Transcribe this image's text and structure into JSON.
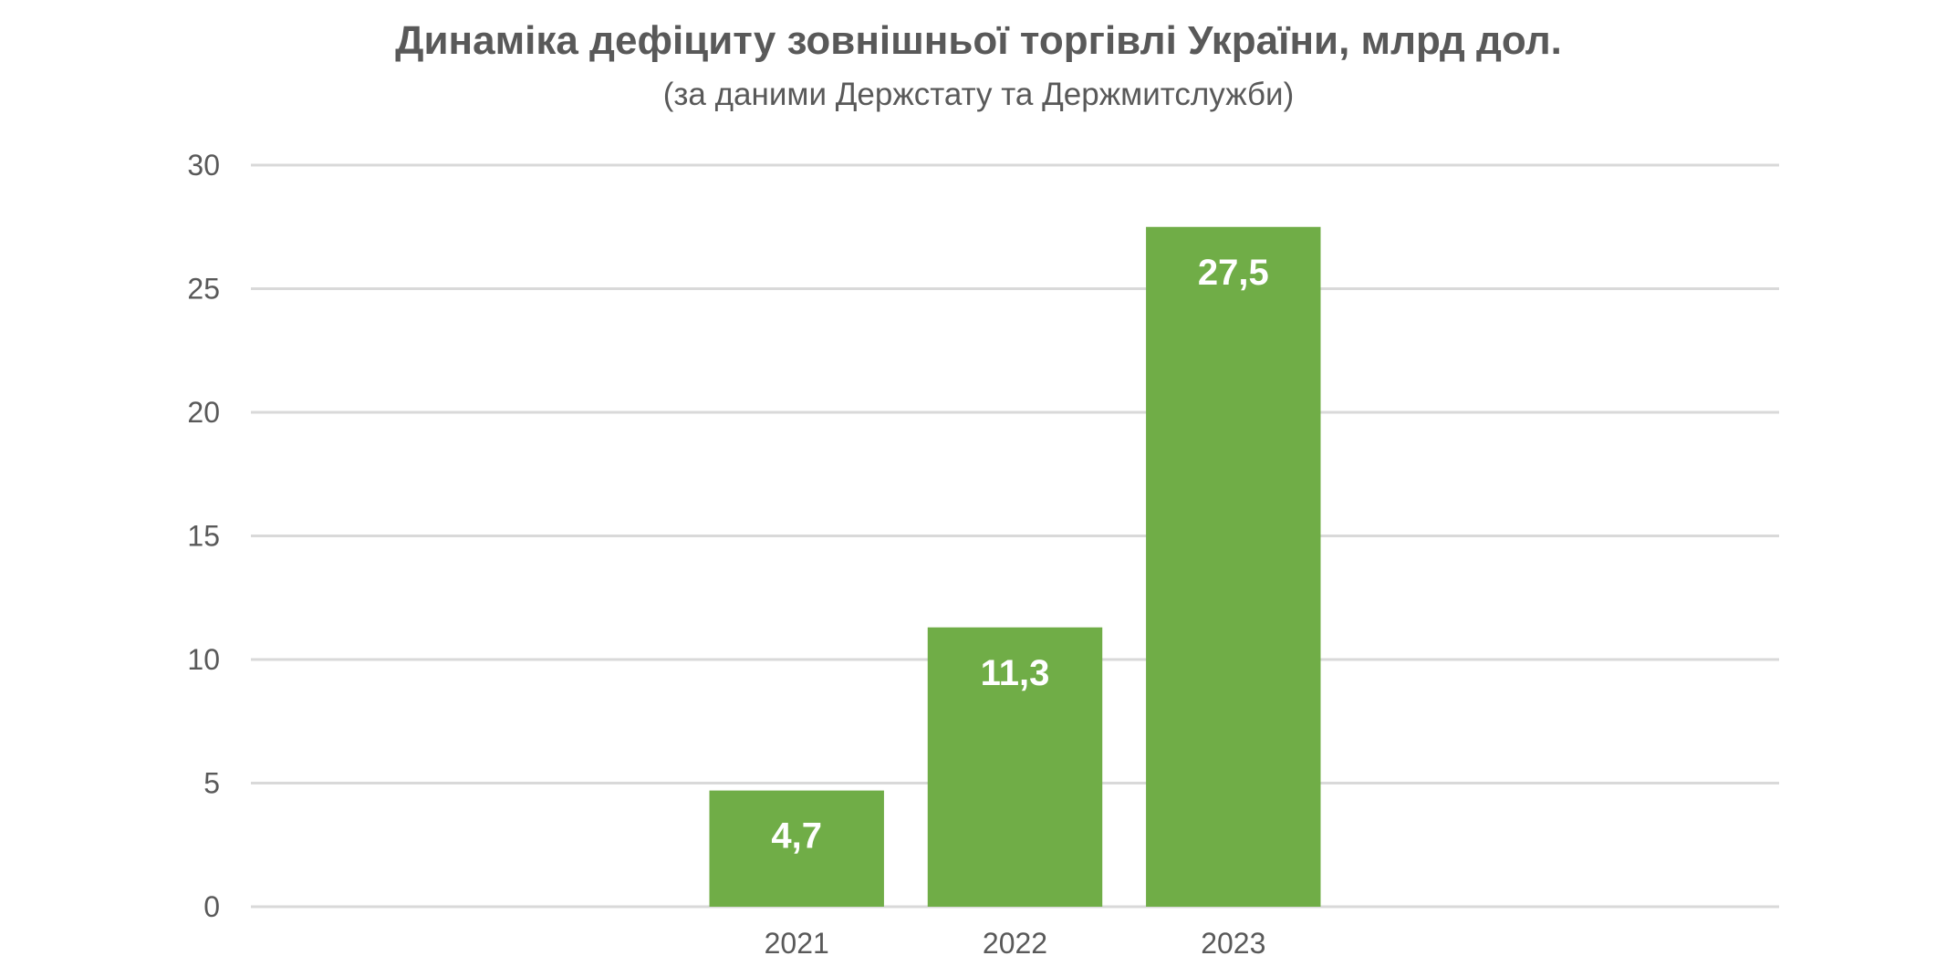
{
  "chart_data": {
    "type": "bar",
    "title": "Динаміка дефіциту зовнішньої торгівлі України, млрд дол.",
    "subtitle": "(за даними Держстату та Держмитслужби)",
    "categories": [
      "",
      "",
      "2021",
      "2022",
      "2023",
      "",
      ""
    ],
    "values": [
      null,
      null,
      4.7,
      11.3,
      27.5,
      null,
      null
    ],
    "data_labels": [
      "",
      "",
      "4,7",
      "11,3",
      "27,5",
      "",
      ""
    ],
    "ylim": [
      0,
      30
    ],
    "yticks": [
      0,
      5,
      10,
      15,
      20,
      25,
      30
    ],
    "grid": true,
    "bar_color": "#70AD47",
    "grid_color": "#D9D9D9",
    "text_color": "#595959",
    "xlabel": "",
    "ylabel": ""
  }
}
